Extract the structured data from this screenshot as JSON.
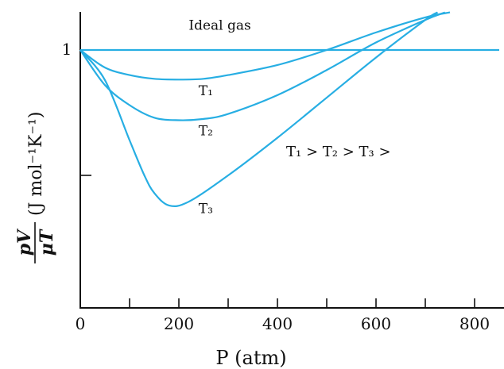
{
  "chart_data": {
    "type": "line",
    "title": "",
    "xlabel": "P (atm)",
    "ylabel": {
      "numerator": "pV",
      "denominator": "μT",
      "unit": "(J mol⁻¹K⁻¹)"
    },
    "xlim": [
      0,
      850
    ],
    "ylim": [
      0,
      1.15
    ],
    "x_ticks": [
      0,
      200,
      400,
      600,
      800
    ],
    "x_minor_ticks": [
      100,
      300,
      500,
      700
    ],
    "y_ticks": [
      {
        "value": 1,
        "label": "1"
      },
      {
        "value": 0.5,
        "label": ""
      }
    ],
    "grid": false,
    "legend": "none",
    "annotation": "T₁ > T₂ > T₃ >",
    "line_color": "#27aee3",
    "series": [
      {
        "name": "Ideal gas",
        "label_x": 220,
        "label_y": 1.08,
        "x": [
          0,
          850
        ],
        "y": [
          1.0,
          1.0
        ]
      },
      {
        "name": "T₁",
        "label_x": 240,
        "label_y": 0.82,
        "x": [
          0,
          50,
          100,
          150,
          200,
          250,
          300,
          400,
          500,
          600,
          700,
          750
        ],
        "y": [
          1.0,
          0.93,
          0.9,
          0.885,
          0.882,
          0.885,
          0.9,
          0.94,
          1.0,
          1.07,
          1.13,
          1.15
        ]
      },
      {
        "name": "T₂",
        "label_x": 240,
        "label_y": 0.66,
        "x": [
          0,
          50,
          100,
          150,
          200,
          250,
          300,
          400,
          500,
          600,
          700,
          740
        ],
        "y": [
          1.0,
          0.86,
          0.78,
          0.73,
          0.72,
          0.725,
          0.745,
          0.82,
          0.92,
          1.03,
          1.12,
          1.15
        ]
      },
      {
        "name": "T₃",
        "label_x": 240,
        "label_y": 0.35,
        "x": [
          0,
          50,
          100,
          130,
          150,
          180,
          220,
          300,
          400,
          500,
          600,
          700,
          725
        ],
        "y": [
          1.0,
          0.88,
          0.64,
          0.5,
          0.43,
          0.38,
          0.395,
          0.5,
          0.65,
          0.81,
          0.97,
          1.12,
          1.15
        ]
      }
    ]
  }
}
